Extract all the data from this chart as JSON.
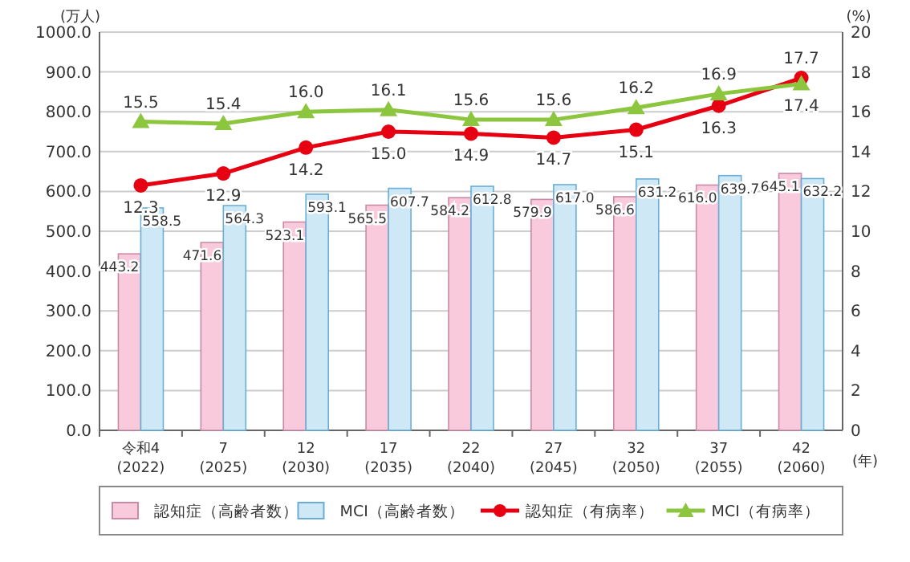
{
  "chart_data": {
    "type": "bar",
    "ylabel": "(万人)",
    "y2label": "(%)",
    "xlabel": "(年)",
    "categories": [
      "令和4\n(2022)",
      "7\n(2025)",
      "12\n(2030)",
      "17\n(2035)",
      "22\n(2040)",
      "27\n(2045)",
      "32\n(2050)",
      "37\n(2055)",
      "42\n(2060)"
    ],
    "series": [
      {
        "name": "認知症（高齢者数）",
        "color": "#f9c9dc",
        "values": [
          443.2,
          471.6,
          523.1,
          565.5,
          584.2,
          579.9,
          586.6,
          616.0,
          645.1
        ],
        "value_labels": [
          "443.2",
          "471.6",
          "523.1",
          "565.5",
          "584.2",
          "579.9",
          "586.6",
          "616.0",
          "645.1"
        ]
      },
      {
        "name": "MCI（高齢者数）",
        "color": "#cfe8f6",
        "values": [
          558.5,
          564.3,
          593.1,
          607.7,
          612.8,
          617.0,
          631.2,
          639.7,
          632.2
        ],
        "value_labels": [
          "558.5",
          "564.3",
          "593.1",
          "607.7",
          "612.8",
          "617.0",
          "631.2",
          "639.7",
          "632.2"
        ]
      },
      {
        "name": "認知症（有病率）",
        "type": "line",
        "axis": "y2",
        "marker": "circle",
        "color": "#e60012",
        "values": [
          12.3,
          12.9,
          14.2,
          15.0,
          14.9,
          14.7,
          15.1,
          16.3,
          17.7
        ],
        "value_labels": [
          "12.3",
          "12.9",
          "14.2",
          "15.0",
          "14.9",
          "14.7",
          "15.1",
          "16.3",
          "17.7"
        ]
      },
      {
        "name": "MCI（有病率）",
        "type": "line",
        "axis": "y2",
        "marker": "triangle",
        "color": "#8cc63e",
        "values": [
          15.5,
          15.4,
          16.0,
          16.1,
          15.6,
          15.6,
          16.2,
          16.9,
          17.4
        ],
        "value_labels": [
          "15.5",
          "15.4",
          "16.0",
          "16.1",
          "15.6",
          "15.6",
          "16.2",
          "16.9",
          "17.4"
        ]
      }
    ],
    "ylim": [
      0,
      1000
    ],
    "yticks": [
      {
        "value": 0,
        "label": "0.0"
      },
      {
        "value": 100,
        "label": "100.0"
      },
      {
        "value": 200,
        "label": "200.0"
      },
      {
        "value": 300,
        "label": "300.0"
      },
      {
        "value": 400,
        "label": "400.0"
      },
      {
        "value": 500,
        "label": "500.0"
      },
      {
        "value": 600,
        "label": "600.0"
      },
      {
        "value": 700,
        "label": "700.0"
      },
      {
        "value": 800,
        "label": "800.0"
      },
      {
        "value": 900,
        "label": "900.0"
      },
      {
        "value": 1000,
        "label": "1000.0"
      }
    ],
    "y2lim": [
      0,
      20
    ],
    "y2ticks": [
      0,
      2,
      4,
      6,
      8,
      10,
      12,
      14,
      16,
      18,
      20
    ],
    "grid": "y",
    "legend": "bottom"
  }
}
